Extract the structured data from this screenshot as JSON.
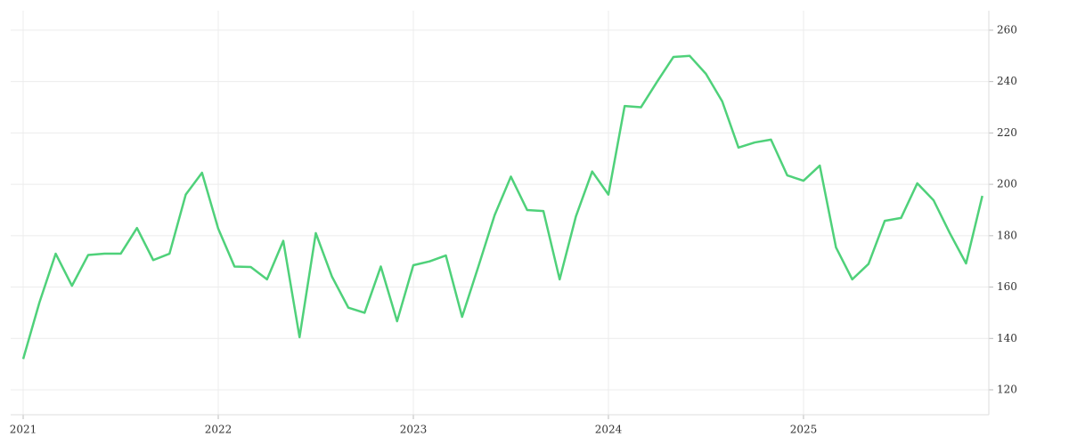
{
  "chart_data": {
    "type": "line",
    "x": [
      2021,
      2021.0833,
      2021.1667,
      2021.25,
      2021.3333,
      2021.4167,
      2021.5,
      2021.5833,
      2021.6667,
      2021.75,
      2021.8333,
      2021.9167,
      2022,
      2022.0833,
      2022.1667,
      2022.25,
      2022.3333,
      2022.4167,
      2022.5,
      2022.5833,
      2022.6667,
      2022.75,
      2022.8333,
      2022.9167,
      2023,
      2023.0833,
      2023.1667,
      2023.25,
      2023.3333,
      2023.4167,
      2023.5,
      2023.5833,
      2023.6667,
      2023.75,
      2023.8333,
      2023.9167,
      2024,
      2024.0833,
      2024.1667,
      2024.25,
      2024.3333,
      2024.4167,
      2024.5,
      2024.5833,
      2024.6667,
      2024.75,
      2024.8333,
      2024.9167,
      2025,
      2025.0833,
      2025.1667,
      2025.25,
      2025.3333,
      2025.4167,
      2025.5,
      2025.5833,
      2025.6667,
      2025.75,
      2025.8333,
      2025.9167
    ],
    "series": [
      {
        "color": "#4fd17a",
        "values": [
          132,
          154,
          173,
          160.5,
          172.5,
          173,
          173,
          183,
          170.5,
          173,
          196,
          204.5,
          182.7,
          168,
          167.8,
          163,
          178,
          140.5,
          181,
          164,
          152,
          150,
          168,
          146.7,
          168.5,
          170,
          172.3,
          148.4,
          168,
          188,
          203,
          190,
          189.6,
          163,
          187.5,
          205,
          196,
          230.5,
          230,
          240,
          249.6,
          250,
          243,
          232.3,
          214.3,
          216.3,
          217.4,
          203.5,
          201.4,
          207.3,
          175.4,
          163,
          169,
          185.8,
          186.9,
          200.4,
          193.8,
          181,
          169.2,
          195.5
        ]
      }
    ],
    "xlim": [
      2020.936,
      2025.95
    ],
    "xticks": [
      2021,
      2022,
      2023,
      2024,
      2025
    ],
    "ylim": [
      110.3,
      267.6
    ],
    "yticks": [
      120,
      140,
      160,
      180,
      200,
      220,
      240,
      260
    ],
    "grid": true
  }
}
